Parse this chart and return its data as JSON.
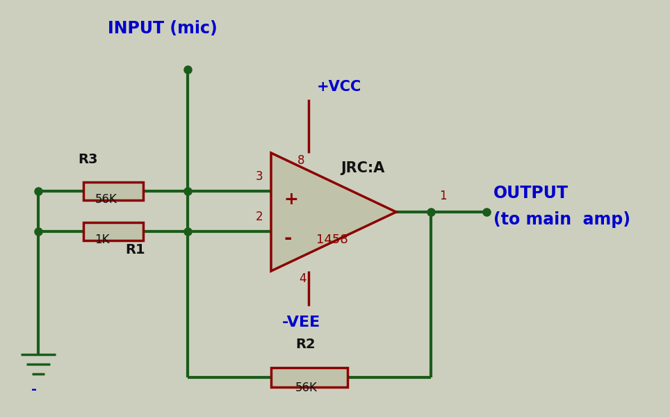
{
  "bg_color": "#cccfbe",
  "wire_color": "#1a5c1a",
  "component_color": "#8b0000",
  "resistor_fill": "#c0c3aa",
  "text_color_blue": "#0000cd",
  "text_color_dark_red": "#8b0000",
  "text_color_black": "#111111",
  "opamp_fill": "#c0c3aa",
  "input_label": "INPUT (mic)",
  "output_label_1": "OUTPUT",
  "output_label_2": "(to main  amp)",
  "vcc_label": "+VCC",
  "vee_label": "-VEE",
  "r1_label": "R1",
  "r2_label": "R2",
  "r3_label": "R3",
  "r1_val": "1K",
  "r2_val": "56K",
  "r3_val": "56K",
  "jrc_label": "JRC:A",
  "ic_label": "1458",
  "pin3": "3",
  "pin2": "2",
  "pin1": "1",
  "pin8": "8",
  "pin4": "4",
  "plus_label": "+",
  "minus_label": "-"
}
